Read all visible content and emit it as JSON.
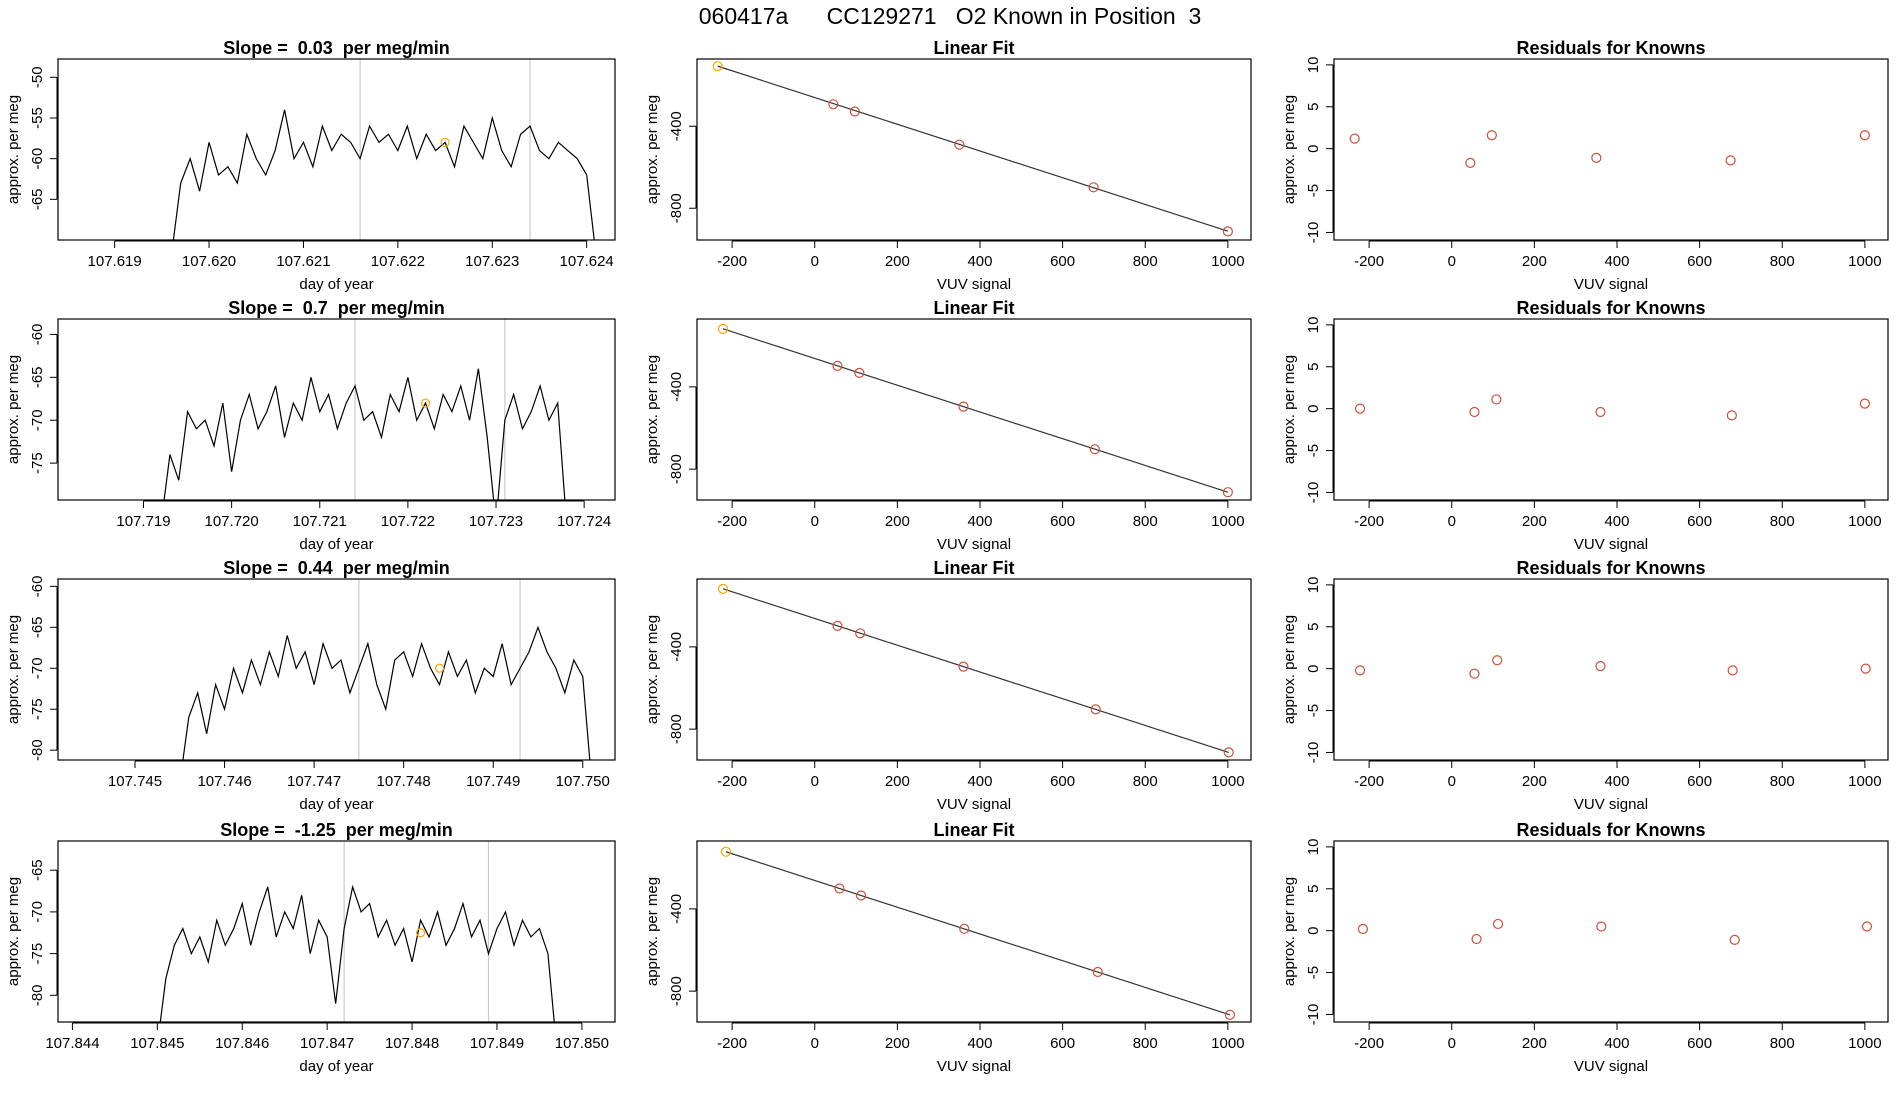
{
  "title": "060417a      CC129271   O2 Known in Position  3",
  "chart_data": [
    {
      "type": "line",
      "title": "Slope =  0.03  per meg/min",
      "x_label": "day of year",
      "y_label": "approx. per meg",
      "color": "#000000",
      "x": [
        107.6196,
        107.6197,
        107.6198,
        107.6199,
        107.62,
        107.6201,
        107.6202,
        107.6203,
        107.6204,
        107.6205,
        107.6206,
        107.6207,
        107.6208,
        107.6209,
        107.621,
        107.6211,
        107.6212,
        107.6213,
        107.6214,
        107.6215,
        107.6216,
        107.6217,
        107.6218,
        107.6219,
        107.622,
        107.6221,
        107.6222,
        107.6223,
        107.6224,
        107.6225,
        107.6226,
        107.6227,
        107.6228,
        107.6229,
        107.623,
        107.6231,
        107.6232,
        107.6233,
        107.6234,
        107.6235,
        107.6236,
        107.6237,
        107.6238,
        107.6239,
        107.624,
        107.6241
      ],
      "values": [
        -72,
        -63,
        -60,
        -64,
        -58,
        -62,
        -61,
        -63,
        -57,
        -60,
        -62,
        -59,
        -54,
        -60,
        -58,
        -61,
        -56,
        -59,
        -57,
        -58,
        -60,
        -56,
        -58,
        -57,
        -59,
        -56,
        -60,
        -57,
        -59,
        -58,
        -61,
        -56,
        -58,
        -60,
        -55,
        -59,
        -61,
        -57,
        -56,
        -59,
        -60,
        -58,
        -59,
        -60,
        -62,
        -72
      ],
      "xlim": [
        107.6184,
        107.6243
      ],
      "ylim": [
        -70,
        -47.75
      ],
      "xticks": [
        107.619,
        {
          "value": 107.62,
          "label": "107.620"
        },
        107.621,
        107.622,
        107.623,
        107.624
      ],
      "yticks": [
        -50,
        -55,
        -60,
        -65
      ],
      "vlines": [
        107.6216,
        107.6234
      ],
      "vline_color": "#cccccc",
      "highlight": {
        "x": 107.6225,
        "y": -58,
        "color": "#ffa500"
      }
    },
    {
      "type": "scatter",
      "title": "Linear Fit",
      "x_label": "VUV signal",
      "y_label": "approx. per meg",
      "x": [
        -235,
        45,
        97,
        350,
        675,
        1000
      ],
      "values": [
        -107,
        -293,
        -328,
        -490,
        -698,
        -913
      ],
      "point_colors": [
        "#ffa500",
        "#cd4f39",
        "#cd4f39",
        "#cd4f39",
        "#cd4f39",
        "#cd4f39"
      ],
      "fit": {
        "intercept": -260,
        "slope": -0.652
      },
      "line_color": "#333333",
      "xlim": [
        -285,
        1056
      ],
      "ylim": [
        -955,
        -72
      ],
      "xticks": [
        -200,
        0,
        200,
        400,
        600,
        800,
        1000
      ],
      "yticks": [
        -400,
        -800
      ]
    },
    {
      "type": "scatter",
      "title": "Residuals for Knowns",
      "x_label": "VUV signal",
      "y_label": "approx. per meg",
      "x": [
        -235,
        45,
        97,
        350,
        675,
        1000
      ],
      "values": [
        1.2,
        -1.7,
        1.6,
        -1.1,
        -1.4,
        1.6
      ],
      "point_colors": [
        "#cd4f39",
        "#cd4f39",
        "#cd4f39",
        "#cd4f39",
        "#cd4f39",
        "#cd4f39"
      ],
      "xlim": [
        -285,
        1056
      ],
      "ylim": [
        -10.9,
        10.7
      ],
      "xticks": [
        -200,
        0,
        200,
        400,
        600,
        800,
        1000
      ],
      "yticks": [
        -10,
        -5,
        0,
        5,
        10
      ]
    },
    {
      "type": "line",
      "title": "Slope =  0.7  per meg/min",
      "x_label": "day of year",
      "y_label": "approx. per meg",
      "color": "#000000",
      "x": [
        107.7192,
        107.7193,
        107.7194,
        107.7195,
        107.7196,
        107.7197,
        107.7198,
        107.7199,
        107.72,
        107.7201,
        107.7202,
        107.7203,
        107.7204,
        107.7205,
        107.7206,
        107.7207,
        107.7208,
        107.7209,
        107.721,
        107.7211,
        107.7212,
        107.7213,
        107.7214,
        107.7215,
        107.7216,
        107.7217,
        107.7218,
        107.7219,
        107.722,
        107.7221,
        107.7222,
        107.7223,
        107.7224,
        107.7225,
        107.7226,
        107.7227,
        107.7228,
        107.7229,
        107.723,
        107.7231,
        107.7232,
        107.7233,
        107.7234,
        107.7235,
        107.7236,
        107.7237,
        107.7238
      ],
      "values": [
        -82,
        -74,
        -77,
        -69,
        -71,
        -70,
        -73,
        -68,
        -76,
        -70,
        -67,
        -71,
        -69,
        -66,
        -72,
        -68,
        -70,
        -65,
        -69,
        -67,
        -71,
        -68,
        -66,
        -70,
        -69,
        -72,
        -67,
        -69,
        -65,
        -70,
        -68,
        -71,
        -67,
        -69,
        -66,
        -70,
        -64,
        -72,
        -82,
        -70,
        -67,
        -71,
        -69,
        -66,
        -70,
        -68,
        -82
      ],
      "xlim": [
        107.71803,
        107.72435
      ],
      "ylim": [
        -79.3,
        -58.2
      ],
      "xticks": [
        107.719,
        {
          "value": 107.72,
          "label": "107.720"
        },
        107.721,
        107.722,
        107.723,
        107.724
      ],
      "yticks": [
        -60,
        -65,
        -70,
        -75
      ],
      "vlines": [
        107.7214,
        107.7231
      ],
      "vline_color": "#cccccc",
      "highlight": {
        "x": 107.7222,
        "y": -68,
        "color": "#ffa500"
      }
    },
    {
      "type": "scatter",
      "title": "Linear Fit",
      "x_label": "VUV signal",
      "y_label": "approx. per meg",
      "x": [
        -222,
        55,
        108,
        360,
        678,
        1000
      ],
      "values": [
        -118,
        -298,
        -332,
        -496,
        -703,
        -912
      ],
      "point_colors": [
        "#ffa500",
        "#cd4f39",
        "#cd4f39",
        "#cd4f39",
        "#cd4f39",
        "#cd4f39"
      ],
      "fit": {
        "intercept": -262,
        "slope": -0.65
      },
      "line_color": "#333333",
      "xlim": [
        -285,
        1056
      ],
      "ylim": [
        -950,
        -70
      ],
      "xticks": [
        -200,
        0,
        200,
        400,
        600,
        800,
        1000
      ],
      "yticks": [
        -400,
        -800
      ]
    },
    {
      "type": "scatter",
      "title": "Residuals for Knowns",
      "x_label": "VUV signal",
      "y_label": "approx. per meg",
      "x": [
        -222,
        55,
        108,
        360,
        678,
        1000
      ],
      "values": [
        0,
        -0.4,
        1.1,
        -0.4,
        -0.8,
        0.6
      ],
      "point_colors": [
        "#cd4f39",
        "#cd4f39",
        "#cd4f39",
        "#cd4f39",
        "#cd4f39",
        "#cd4f39"
      ],
      "xlim": [
        -285,
        1056
      ],
      "ylim": [
        -10.9,
        10.7
      ],
      "xticks": [
        -200,
        0,
        200,
        400,
        600,
        800,
        1000
      ],
      "yticks": [
        -10,
        -5,
        0,
        5,
        10
      ]
    },
    {
      "type": "line",
      "title": "Slope =  0.44  per meg/min",
      "x_label": "day of year",
      "y_label": "approx. per meg",
      "color": "#000000",
      "x": [
        107.7455,
        107.7456,
        107.7457,
        107.7458,
        107.7459,
        107.746,
        107.7461,
        107.7462,
        107.7463,
        107.7464,
        107.7465,
        107.7466,
        107.7467,
        107.7468,
        107.7469,
        107.747,
        107.7471,
        107.7472,
        107.7473,
        107.7474,
        107.7475,
        107.7476,
        107.7477,
        107.7478,
        107.7479,
        107.748,
        107.7481,
        107.7482,
        107.7483,
        107.7484,
        107.7485,
        107.7486,
        107.7487,
        107.7488,
        107.7489,
        107.749,
        107.7491,
        107.7492,
        107.7493,
        107.7494,
        107.7495,
        107.7496,
        107.7497,
        107.7498,
        107.7499,
        107.75,
        107.7501
      ],
      "values": [
        -84,
        -76,
        -73,
        -78,
        -72,
        -75,
        -70,
        -73,
        -69,
        -72,
        -68,
        -71,
        -66,
        -70,
        -68,
        -72,
        -67,
        -70,
        -69,
        -73,
        -70,
        -67,
        -72,
        -75,
        -69,
        -68,
        -71,
        -67,
        -70,
        -72,
        -68,
        -71,
        -69,
        -73,
        -70,
        -71,
        -67,
        -72,
        -70,
        -68,
        -65,
        -68,
        -70,
        -73,
        -69,
        -71,
        -84
      ],
      "xlim": [
        107.74414,
        107.75036
      ],
      "ylim": [
        -81.2,
        -59.1
      ],
      "xticks": [
        107.745,
        107.746,
        107.747,
        107.748,
        107.749,
        {
          "value": 107.75,
          "label": "107.750"
        }
      ],
      "yticks": [
        -60,
        -65,
        -70,
        -75,
        -80
      ],
      "vlines": [
        107.7475,
        107.7493
      ],
      "vline_color": "#cccccc",
      "highlight": {
        "x": 107.7484,
        "y": -70,
        "color": "#ffa500"
      }
    },
    {
      "type": "scatter",
      "title": "Linear Fit",
      "x_label": "VUV signal",
      "y_label": "approx. per meg",
      "x": [
        -222,
        55,
        110,
        360,
        680,
        1002
      ],
      "values": [
        -118,
        -298,
        -334,
        -496,
        -704,
        -913
      ],
      "point_colors": [
        "#ffa500",
        "#cd4f39",
        "#cd4f39",
        "#cd4f39",
        "#cd4f39",
        "#cd4f39"
      ],
      "fit": {
        "intercept": -262,
        "slope": -0.65
      },
      "line_color": "#333333",
      "xlim": [
        -285,
        1056
      ],
      "ylim": [
        -950,
        -70
      ],
      "xticks": [
        -200,
        0,
        200,
        400,
        600,
        800,
        1000
      ],
      "yticks": [
        -400,
        -800
      ]
    },
    {
      "type": "scatter",
      "title": "Residuals for Knowns",
      "x_label": "VUV signal",
      "y_label": "approx. per meg",
      "x": [
        -222,
        55,
        110,
        360,
        680,
        1002
      ],
      "values": [
        -0.2,
        -0.6,
        1.0,
        0.3,
        -0.2,
        0.0
      ],
      "point_colors": [
        "#cd4f39",
        "#cd4f39",
        "#cd4f39",
        "#cd4f39",
        "#cd4f39",
        "#cd4f39"
      ],
      "xlim": [
        -285,
        1056
      ],
      "ylim": [
        -10.9,
        10.7
      ],
      "xticks": [
        -200,
        0,
        200,
        400,
        600,
        800,
        1000
      ],
      "yticks": [
        -10,
        -5,
        0,
        5,
        10
      ]
    },
    {
      "type": "line",
      "title": "Slope =  -1.25  per meg/min",
      "x_label": "day of year",
      "y_label": "approx. per meg",
      "color": "#000000",
      "x": [
        107.845,
        107.8451,
        107.8452,
        107.8453,
        107.8454,
        107.8455,
        107.8456,
        107.8457,
        107.8458,
        107.8459,
        107.846,
        107.8461,
        107.8462,
        107.8463,
        107.8464,
        107.8465,
        107.8466,
        107.8467,
        107.8468,
        107.8469,
        107.847,
        107.8471,
        107.8472,
        107.8473,
        107.8474,
        107.8475,
        107.8476,
        107.8477,
        107.8478,
        107.8479,
        107.848,
        107.8481,
        107.8482,
        107.8483,
        107.8484,
        107.8485,
        107.8486,
        107.8487,
        107.8488,
        107.8489,
        107.849,
        107.8491,
        107.8492,
        107.8493,
        107.8494,
        107.8495,
        107.8496,
        107.8497
      ],
      "values": [
        -86,
        -78,
        -74,
        -72,
        -75,
        -73,
        -76,
        -71,
        -74,
        -72,
        -69,
        -74,
        -70,
        -67,
        -73,
        -70,
        -72,
        -68,
        -75,
        -71,
        -73,
        -81,
        -72,
        -67,
        -70,
        -69,
        -73,
        -71,
        -74,
        -72,
        -76,
        -71,
        -73,
        -70,
        -74,
        -72,
        -69,
        -73,
        -71,
        -75,
        -72,
        -70,
        -74,
        -71,
        -73,
        -72,
        -75,
        -86
      ],
      "xlim": [
        107.84383,
        107.85039
      ],
      "ylim": [
        -83.2,
        -61.5
      ],
      "xticks": [
        107.844,
        107.845,
        107.846,
        107.847,
        107.848,
        107.849,
        {
          "value": 107.85,
          "label": "107.850"
        }
      ],
      "yticks": [
        -65,
        -70,
        -75,
        -80
      ],
      "vlines": [
        107.8472,
        107.8489
      ],
      "vline_color": "#cccccc",
      "highlight": {
        "x": 107.8481,
        "y": -72.5,
        "color": "#ffa500"
      }
    },
    {
      "type": "scatter",
      "title": "Linear Fit",
      "x_label": "VUV signal",
      "y_label": "approx. per meg",
      "x": [
        -215,
        60,
        112,
        362,
        685,
        1005
      ],
      "values": [
        -122,
        -301,
        -335,
        -497,
        -707,
        -915
      ],
      "point_colors": [
        "#ffa500",
        "#cd4f39",
        "#cd4f39",
        "#cd4f39",
        "#cd4f39",
        "#cd4f39"
      ],
      "fit": {
        "intercept": -262,
        "slope": -0.65
      },
      "line_color": "#333333",
      "xlim": [
        -285,
        1056
      ],
      "ylim": [
        -950,
        -70
      ],
      "xticks": [
        -200,
        0,
        200,
        400,
        600,
        800,
        1000
      ],
      "yticks": [
        -400,
        -800
      ]
    },
    {
      "type": "scatter",
      "title": "Residuals for Knowns",
      "x_label": "VUV signal",
      "y_label": "approx. per meg",
      "x": [
        -215,
        60,
        112,
        362,
        685,
        1005
      ],
      "values": [
        0.2,
        -1.0,
        0.8,
        0.5,
        -1.1,
        0.5
      ],
      "point_colors": [
        "#cd4f39",
        "#cd4f39",
        "#cd4f39",
        "#cd4f39",
        "#cd4f39",
        "#cd4f39"
      ],
      "xlim": [
        -285,
        1056
      ],
      "ylim": [
        -10.9,
        10.7
      ],
      "xticks": [
        -200,
        0,
        200,
        400,
        600,
        800,
        1000
      ],
      "yticks": [
        -10,
        -5,
        0,
        5,
        10
      ]
    }
  ]
}
